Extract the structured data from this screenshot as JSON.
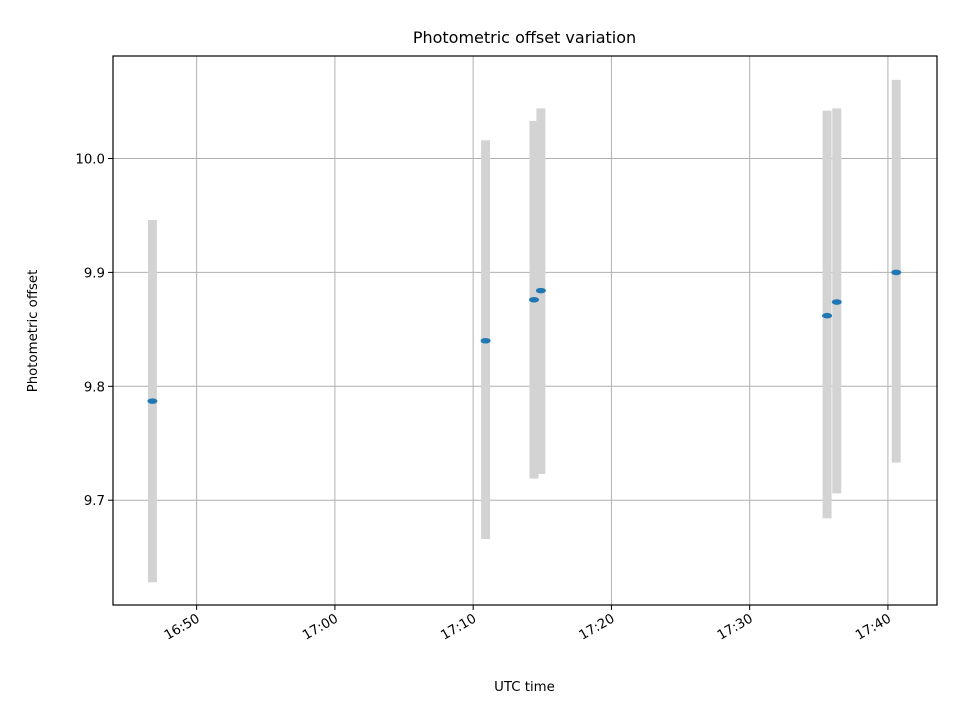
{
  "chart_data": {
    "type": "scatter",
    "title": "Photometric offset variation",
    "xlabel": "UTC time",
    "ylabel": "Photometric offset",
    "x_ticks": [
      "16:50",
      "17:00",
      "17:10",
      "17:20",
      "17:30",
      "17:40"
    ],
    "y_ticks": [
      "9.7",
      "9.8",
      "9.9",
      "10.0"
    ],
    "xlim": [
      "16:43:57",
      "17:43:33"
    ],
    "ylim": [
      9.608,
      10.09
    ],
    "grid": true,
    "colors": {
      "points": "#1f77b4",
      "error_bars": "#d3d3d3",
      "grid": "#b0b0b0"
    },
    "points": [
      {
        "x": "16:46:48",
        "y": 9.787,
        "y_low": 9.628,
        "y_high": 9.946
      },
      {
        "x": "17:10:54",
        "y": 9.84,
        "y_low": 9.666,
        "y_high": 10.016
      },
      {
        "x": "17:14:24",
        "y": 9.876,
        "y_low": 9.719,
        "y_high": 10.033
      },
      {
        "x": "17:14:54",
        "y": 9.884,
        "y_low": 9.723,
        "y_high": 10.044
      },
      {
        "x": "17:35:36",
        "y": 9.862,
        "y_low": 9.684,
        "y_high": 10.042
      },
      {
        "x": "17:36:18",
        "y": 9.874,
        "y_low": 9.706,
        "y_high": 10.044
      },
      {
        "x": "17:40:36",
        "y": 9.9,
        "y_low": 9.733,
        "y_high": 10.069
      }
    ]
  }
}
